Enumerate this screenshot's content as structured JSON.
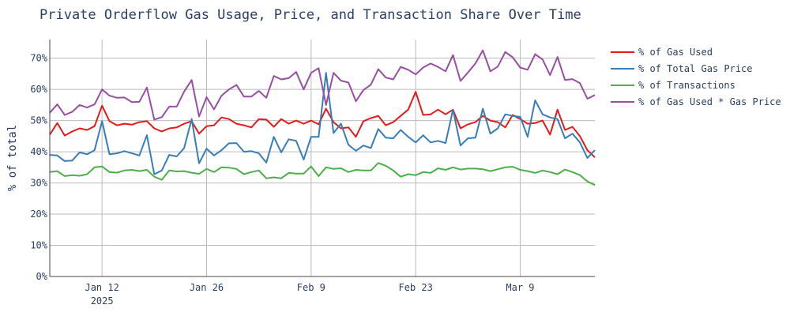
{
  "colors": {
    "gas_used": "#e41a1c",
    "total_gas_price": "#377eb8",
    "transactions": "#4daf4a",
    "gas_used_x_price": "#984ea3",
    "grid": "#bbbbbb",
    "text": "#2a3f5f"
  },
  "chart_data": {
    "type": "line",
    "title": "Private Orderflow Gas Usage, Price, and Transaction Share Over Time",
    "xlabel": "",
    "ylabel": "% of total",
    "x_start": "2025-01-01",
    "x_step_days": 1,
    "xlim_days": [
      0,
      73
    ],
    "ylim": [
      0,
      76
    ],
    "y_ticks": [
      0,
      10,
      20,
      30,
      40,
      50,
      60,
      70
    ],
    "y_tick_labels": [
      "0%",
      "10%",
      "20%",
      "30%",
      "40%",
      "50%",
      "60%",
      "70%"
    ],
    "x_ticks": [
      {
        "day": 7,
        "label": "Jan 12",
        "sublabel": "2025"
      },
      {
        "day": 21,
        "label": "Jan 26",
        "sublabel": ""
      },
      {
        "day": 35,
        "label": "Feb 9",
        "sublabel": ""
      },
      {
        "day": 49,
        "label": "Feb 23",
        "sublabel": ""
      },
      {
        "day": 63,
        "label": "Mar 9",
        "sublabel": ""
      }
    ],
    "legend_position": "right",
    "series": [
      {
        "name": "% of Gas Used",
        "color_key": "gas_used",
        "values": [
          45.5,
          49.2,
          45.2,
          46.5,
          47.5,
          47.0,
          48.2,
          54.8,
          49.8,
          48.5,
          49.0,
          48.7,
          49.5,
          49.8,
          47.5,
          46.5,
          47.5,
          47.8,
          49.0,
          49.8,
          45.8,
          48.2,
          48.5,
          51.0,
          50.5,
          49.0,
          48.5,
          47.8,
          50.5,
          50.3,
          48.0,
          50.5,
          49.0,
          50.0,
          49.0,
          50.0,
          48.8,
          53.8,
          49.5,
          47.5,
          47.8,
          44.8,
          49.8,
          50.8,
          51.5,
          48.5,
          49.5,
          51.5,
          53.5,
          59.2,
          51.8,
          52.0,
          53.5,
          52.0,
          53.5,
          47.5,
          48.8,
          49.5,
          51.5,
          50.0,
          49.5,
          47.8,
          51.8,
          50.5,
          49.0,
          49.2,
          50.0,
          45.5,
          53.5,
          47.0,
          48.0,
          45.0,
          40.5,
          38.2
        ]
      },
      {
        "name": "% of Total Gas Price",
        "color_key": "total_gas_price",
        "values": [
          39.0,
          38.8,
          37.0,
          37.2,
          39.8,
          39.2,
          40.5,
          49.8,
          39.2,
          39.5,
          40.2,
          39.5,
          38.8,
          45.3,
          32.8,
          34.0,
          39.0,
          38.5,
          41.2,
          50.5,
          36.3,
          41.0,
          38.8,
          40.5,
          42.7,
          42.8,
          40.0,
          40.2,
          39.5,
          36.5,
          44.8,
          39.8,
          44.0,
          43.5,
          37.5,
          44.8,
          44.8,
          65.3,
          46.0,
          49.0,
          42.2,
          40.3,
          42.0,
          41.2,
          47.3,
          44.5,
          44.3,
          47.0,
          44.8,
          43.0,
          45.3,
          43.0,
          43.5,
          42.8,
          53.5,
          42.0,
          44.3,
          44.5,
          53.8,
          45.8,
          47.5,
          52.0,
          51.5,
          51.2,
          44.8,
          56.5,
          52.0,
          51.0,
          50.5,
          44.3,
          45.8,
          43.0,
          38.0,
          40.5
        ]
      },
      {
        "name": "% of Transactions",
        "color_key": "transactions",
        "values": [
          33.5,
          33.8,
          32.2,
          32.5,
          32.3,
          32.8,
          35.0,
          35.3,
          33.5,
          33.3,
          34.0,
          34.2,
          33.8,
          34.2,
          32.0,
          31.0,
          34.0,
          33.7,
          33.8,
          33.3,
          32.9,
          34.5,
          33.5,
          35.0,
          34.9,
          34.5,
          32.8,
          33.5,
          34.0,
          31.5,
          31.8,
          31.5,
          33.2,
          33.0,
          33.0,
          35.3,
          32.2,
          35.0,
          34.5,
          34.7,
          33.5,
          34.2,
          34.0,
          34.0,
          36.4,
          35.5,
          34.0,
          32.0,
          32.8,
          32.5,
          33.5,
          33.2,
          34.7,
          34.2,
          35.0,
          34.3,
          34.6,
          34.6,
          34.4,
          33.8,
          34.4,
          35.0,
          35.2,
          34.2,
          33.8,
          33.2,
          34.0,
          33.5,
          32.8,
          34.3,
          33.5,
          32.5,
          30.5,
          29.3
        ]
      },
      {
        "name": "% of Gas Used * Gas Price",
        "color_key": "gas_used_x_price",
        "values": [
          52.5,
          55.2,
          51.8,
          52.8,
          55.0,
          54.2,
          55.2,
          60.0,
          58.0,
          57.3,
          57.4,
          55.9,
          56.0,
          60.6,
          50.3,
          51.1,
          54.5,
          54.5,
          59.3,
          63.0,
          51.3,
          57.5,
          53.6,
          58.0,
          60.0,
          61.4,
          57.7,
          57.7,
          59.5,
          57.3,
          64.3,
          63.2,
          63.6,
          65.6,
          60.0,
          65.3,
          66.8,
          55.0,
          65.3,
          62.8,
          62.2,
          56.2,
          59.8,
          61.5,
          66.5,
          63.8,
          63.2,
          67.2,
          66.3,
          64.8,
          67.0,
          68.3,
          67.2,
          65.8,
          71.0,
          62.7,
          65.4,
          68.3,
          72.5,
          65.8,
          67.3,
          72.0,
          70.3,
          67.0,
          66.3,
          71.3,
          69.6,
          64.6,
          70.4,
          63.0,
          63.3,
          62.0,
          57.0,
          58.2
        ]
      }
    ]
  }
}
